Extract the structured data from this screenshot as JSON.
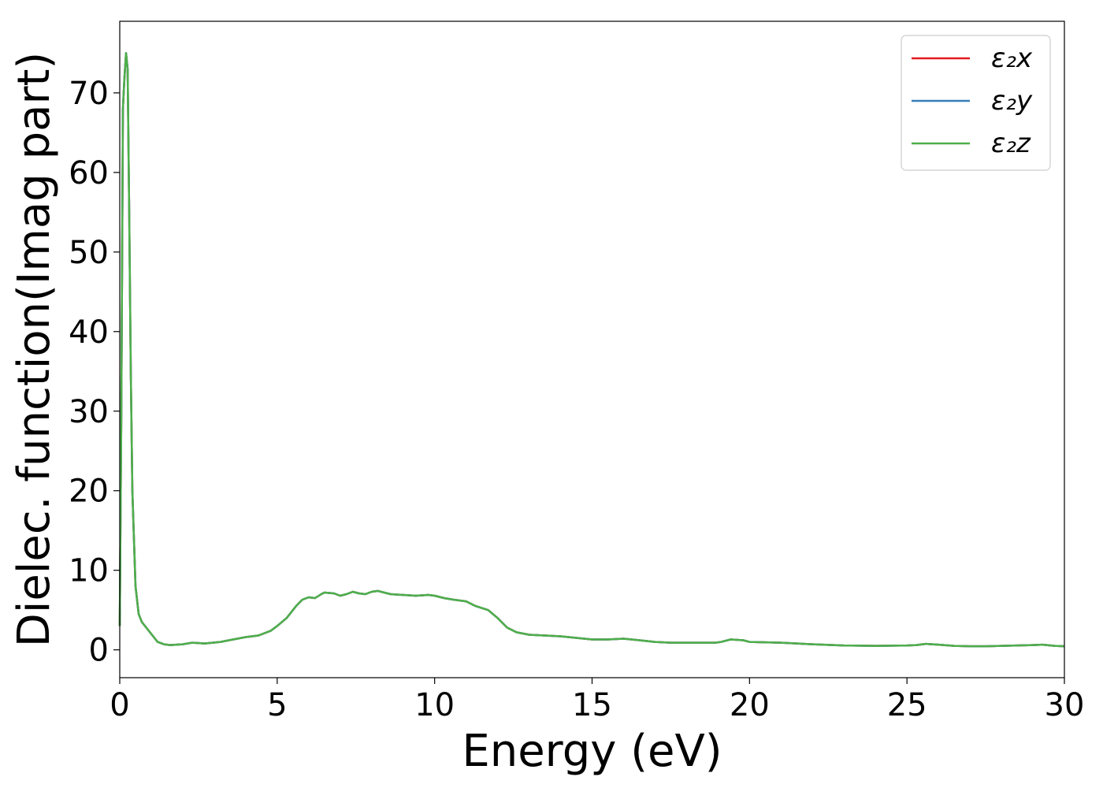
{
  "chart_data": {
    "type": "line",
    "title": "",
    "xlabel": "Energy (eV)",
    "ylabel": "Dielec. function(Imag part)",
    "xlim": [
      0,
      30
    ],
    "ylim": [
      -3.5,
      79
    ],
    "xticks": [
      0,
      5,
      10,
      15,
      20,
      25,
      30
    ],
    "yticks": [
      0,
      10,
      20,
      30,
      40,
      50,
      60,
      70
    ],
    "grid": false,
    "legend_position": "top-right",
    "x": [
      0,
      0.05,
      0.1,
      0.15,
      0.2,
      0.25,
      0.3,
      0.35,
      0.4,
      0.5,
      0.6,
      0.7,
      0.8,
      1.0,
      1.2,
      1.4,
      1.6,
      2.0,
      2.3,
      2.7,
      3.2,
      3.6,
      4.0,
      4.4,
      4.8,
      5.0,
      5.3,
      5.6,
      5.8,
      6.0,
      6.2,
      6.4,
      6.5,
      6.8,
      7.0,
      7.2,
      7.4,
      7.6,
      7.8,
      8.0,
      8.2,
      8.4,
      8.6,
      9.0,
      9.4,
      9.8,
      10.0,
      10.3,
      10.6,
      11.0,
      11.3,
      11.7,
      12.0,
      12.3,
      12.6,
      13.0,
      13.5,
      14.0,
      14.5,
      15.0,
      15.5,
      16.0,
      16.5,
      17.0,
      17.5,
      18.0,
      18.5,
      18.9,
      19.1,
      19.4,
      19.8,
      20.0,
      21.0,
      22.0,
      23.0,
      24.0,
      25.0,
      25.3,
      25.6,
      26.0,
      26.5,
      27.0,
      27.5,
      28.0,
      28.5,
      29.0,
      29.3,
      29.7,
      30.0
    ],
    "series": [
      {
        "name": "ε₂x",
        "color": "#e41a1c",
        "values": [
          3,
          30,
          68,
          72,
          75,
          73,
          55,
          35,
          20,
          8,
          4.5,
          3.5,
          3,
          2,
          1,
          0.7,
          0.6,
          0.7,
          0.9,
          0.8,
          1,
          1.3,
          1.6,
          1.8,
          2.4,
          3,
          4,
          5.5,
          6.3,
          6.6,
          6.5,
          7,
          7.2,
          7.1,
          6.8,
          7.0,
          7.3,
          7.1,
          7.0,
          7.3,
          7.4,
          7.2,
          7.0,
          6.9,
          6.8,
          6.9,
          6.8,
          6.5,
          6.3,
          6.1,
          5.5,
          5,
          4,
          2.8,
          2.2,
          1.9,
          1.8,
          1.7,
          1.5,
          1.3,
          1.3,
          1.4,
          1.2,
          1.0,
          0.9,
          0.9,
          0.9,
          0.9,
          1.0,
          1.3,
          1.2,
          1.0,
          0.9,
          0.7,
          0.55,
          0.5,
          0.55,
          0.6,
          0.75,
          0.65,
          0.5,
          0.45,
          0.45,
          0.5,
          0.55,
          0.6,
          0.65,
          0.5,
          0.45
        ]
      },
      {
        "name": "ε₂y",
        "color": "#377eb8",
        "values": [
          3,
          30,
          68,
          72,
          75,
          73,
          55,
          35,
          20,
          8,
          4.5,
          3.5,
          3,
          2,
          1,
          0.7,
          0.6,
          0.7,
          0.9,
          0.8,
          1,
          1.3,
          1.6,
          1.8,
          2.4,
          3,
          4,
          5.5,
          6.3,
          6.6,
          6.5,
          7,
          7.2,
          7.1,
          6.8,
          7.0,
          7.3,
          7.1,
          7.0,
          7.3,
          7.4,
          7.2,
          7.0,
          6.9,
          6.8,
          6.9,
          6.8,
          6.5,
          6.3,
          6.1,
          5.5,
          5,
          4,
          2.8,
          2.2,
          1.9,
          1.8,
          1.7,
          1.5,
          1.3,
          1.3,
          1.4,
          1.2,
          1.0,
          0.9,
          0.9,
          0.9,
          0.9,
          1.0,
          1.3,
          1.2,
          1.0,
          0.9,
          0.7,
          0.55,
          0.5,
          0.55,
          0.6,
          0.75,
          0.65,
          0.5,
          0.45,
          0.45,
          0.5,
          0.55,
          0.6,
          0.65,
          0.5,
          0.45
        ]
      },
      {
        "name": "ε₂z",
        "color": "#4daf4a",
        "values": [
          3,
          30,
          68,
          72,
          75,
          73,
          55,
          35,
          20,
          8,
          4.5,
          3.5,
          3,
          2,
          1,
          0.7,
          0.6,
          0.7,
          0.9,
          0.8,
          1,
          1.3,
          1.6,
          1.8,
          2.4,
          3,
          4,
          5.5,
          6.3,
          6.6,
          6.5,
          7,
          7.2,
          7.1,
          6.8,
          7.0,
          7.3,
          7.1,
          7.0,
          7.3,
          7.4,
          7.2,
          7.0,
          6.9,
          6.8,
          6.9,
          6.8,
          6.5,
          6.3,
          6.1,
          5.5,
          5,
          4,
          2.8,
          2.2,
          1.9,
          1.8,
          1.7,
          1.5,
          1.3,
          1.3,
          1.4,
          1.2,
          1.0,
          0.9,
          0.9,
          0.9,
          0.9,
          1.0,
          1.3,
          1.2,
          1.0,
          0.9,
          0.7,
          0.55,
          0.5,
          0.55,
          0.6,
          0.75,
          0.65,
          0.5,
          0.45,
          0.45,
          0.5,
          0.55,
          0.6,
          0.65,
          0.5,
          0.45
        ]
      }
    ]
  }
}
